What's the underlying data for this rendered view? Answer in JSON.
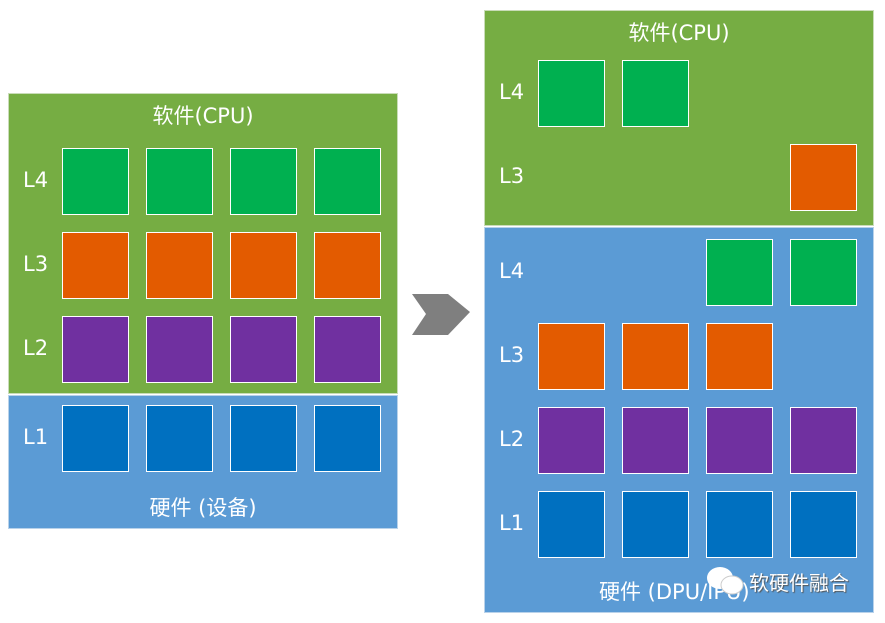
{
  "colors": {
    "software_bg": "#76AD43",
    "hardware_bg": "#5B9BD5",
    "L4": "#00B050",
    "L3": "#E35B00",
    "L2": "#7030A0",
    "L1": "#0070C0"
  },
  "left": {
    "software_title": "软件(CPU)",
    "hardware_title": "硬件 (设备)",
    "software_rows": [
      {
        "label": "L4",
        "cells": [
          "L4",
          "L4",
          "L4",
          "L4"
        ]
      },
      {
        "label": "L3",
        "cells": [
          "L3",
          "L3",
          "L3",
          "L3"
        ]
      },
      {
        "label": "L2",
        "cells": [
          "L2",
          "L2",
          "L2",
          "L2"
        ]
      }
    ],
    "hardware_rows": [
      {
        "label": "L1",
        "cells": [
          "L1",
          "L1",
          "L1",
          "L1"
        ]
      }
    ]
  },
  "arrow_icon": "chevron-right-arrow",
  "right": {
    "software_title": "软件(CPU)",
    "hardware_title": "硬件 (DPU/IPU)",
    "software_rows": [
      {
        "label": "L4",
        "cells": [
          "L4",
          "L4",
          null,
          null
        ]
      },
      {
        "label": "L3",
        "cells": [
          null,
          null,
          null,
          "L3"
        ]
      }
    ],
    "hardware_rows": [
      {
        "label": "L4",
        "cells": [
          null,
          null,
          "L4",
          "L4"
        ]
      },
      {
        "label": "L3",
        "cells": [
          "L3",
          "L3",
          "L3",
          null
        ]
      },
      {
        "label": "L2",
        "cells": [
          "L2",
          "L2",
          "L2",
          "L2"
        ]
      },
      {
        "label": "L1",
        "cells": [
          "L1",
          "L1",
          "L1",
          "L1"
        ]
      }
    ]
  },
  "watermark": {
    "icon": "wechat-icon",
    "text": "软硬件融合"
  }
}
